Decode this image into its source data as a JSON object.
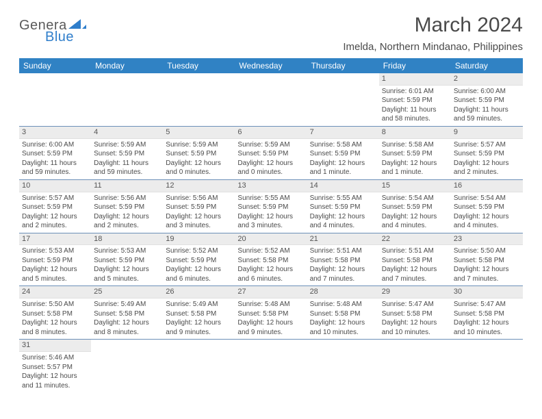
{
  "logo": {
    "word1": "Genera",
    "word2": "Blue"
  },
  "title": "March 2024",
  "subtitle": "Imelda, Northern Mindanao, Philippines",
  "colors": {
    "header_bg": "#3082c4",
    "header_fg": "#ffffff",
    "daynum_bg": "#ececec",
    "border": "#6b8fb8",
    "text": "#4a4a4a"
  },
  "day_names": [
    "Sunday",
    "Monday",
    "Tuesday",
    "Wednesday",
    "Thursday",
    "Friday",
    "Saturday"
  ],
  "weeks": [
    [
      {
        "n": "",
        "sunrise": "",
        "sunset": "",
        "daylight": ""
      },
      {
        "n": "",
        "sunrise": "",
        "sunset": "",
        "daylight": ""
      },
      {
        "n": "",
        "sunrise": "",
        "sunset": "",
        "daylight": ""
      },
      {
        "n": "",
        "sunrise": "",
        "sunset": "",
        "daylight": ""
      },
      {
        "n": "",
        "sunrise": "",
        "sunset": "",
        "daylight": ""
      },
      {
        "n": "1",
        "sunrise": "Sunrise: 6:01 AM",
        "sunset": "Sunset: 5:59 PM",
        "daylight": "Daylight: 11 hours and 58 minutes."
      },
      {
        "n": "2",
        "sunrise": "Sunrise: 6:00 AM",
        "sunset": "Sunset: 5:59 PM",
        "daylight": "Daylight: 11 hours and 59 minutes."
      }
    ],
    [
      {
        "n": "3",
        "sunrise": "Sunrise: 6:00 AM",
        "sunset": "Sunset: 5:59 PM",
        "daylight": "Daylight: 11 hours and 59 minutes."
      },
      {
        "n": "4",
        "sunrise": "Sunrise: 5:59 AM",
        "sunset": "Sunset: 5:59 PM",
        "daylight": "Daylight: 11 hours and 59 minutes."
      },
      {
        "n": "5",
        "sunrise": "Sunrise: 5:59 AM",
        "sunset": "Sunset: 5:59 PM",
        "daylight": "Daylight: 12 hours and 0 minutes."
      },
      {
        "n": "6",
        "sunrise": "Sunrise: 5:59 AM",
        "sunset": "Sunset: 5:59 PM",
        "daylight": "Daylight: 12 hours and 0 minutes."
      },
      {
        "n": "7",
        "sunrise": "Sunrise: 5:58 AM",
        "sunset": "Sunset: 5:59 PM",
        "daylight": "Daylight: 12 hours and 1 minute."
      },
      {
        "n": "8",
        "sunrise": "Sunrise: 5:58 AM",
        "sunset": "Sunset: 5:59 PM",
        "daylight": "Daylight: 12 hours and 1 minute."
      },
      {
        "n": "9",
        "sunrise": "Sunrise: 5:57 AM",
        "sunset": "Sunset: 5:59 PM",
        "daylight": "Daylight: 12 hours and 2 minutes."
      }
    ],
    [
      {
        "n": "10",
        "sunrise": "Sunrise: 5:57 AM",
        "sunset": "Sunset: 5:59 PM",
        "daylight": "Daylight: 12 hours and 2 minutes."
      },
      {
        "n": "11",
        "sunrise": "Sunrise: 5:56 AM",
        "sunset": "Sunset: 5:59 PM",
        "daylight": "Daylight: 12 hours and 2 minutes."
      },
      {
        "n": "12",
        "sunrise": "Sunrise: 5:56 AM",
        "sunset": "Sunset: 5:59 PM",
        "daylight": "Daylight: 12 hours and 3 minutes."
      },
      {
        "n": "13",
        "sunrise": "Sunrise: 5:55 AM",
        "sunset": "Sunset: 5:59 PM",
        "daylight": "Daylight: 12 hours and 3 minutes."
      },
      {
        "n": "14",
        "sunrise": "Sunrise: 5:55 AM",
        "sunset": "Sunset: 5:59 PM",
        "daylight": "Daylight: 12 hours and 4 minutes."
      },
      {
        "n": "15",
        "sunrise": "Sunrise: 5:54 AM",
        "sunset": "Sunset: 5:59 PM",
        "daylight": "Daylight: 12 hours and 4 minutes."
      },
      {
        "n": "16",
        "sunrise": "Sunrise: 5:54 AM",
        "sunset": "Sunset: 5:59 PM",
        "daylight": "Daylight: 12 hours and 4 minutes."
      }
    ],
    [
      {
        "n": "17",
        "sunrise": "Sunrise: 5:53 AM",
        "sunset": "Sunset: 5:59 PM",
        "daylight": "Daylight: 12 hours and 5 minutes."
      },
      {
        "n": "18",
        "sunrise": "Sunrise: 5:53 AM",
        "sunset": "Sunset: 5:59 PM",
        "daylight": "Daylight: 12 hours and 5 minutes."
      },
      {
        "n": "19",
        "sunrise": "Sunrise: 5:52 AM",
        "sunset": "Sunset: 5:59 PM",
        "daylight": "Daylight: 12 hours and 6 minutes."
      },
      {
        "n": "20",
        "sunrise": "Sunrise: 5:52 AM",
        "sunset": "Sunset: 5:58 PM",
        "daylight": "Daylight: 12 hours and 6 minutes."
      },
      {
        "n": "21",
        "sunrise": "Sunrise: 5:51 AM",
        "sunset": "Sunset: 5:58 PM",
        "daylight": "Daylight: 12 hours and 7 minutes."
      },
      {
        "n": "22",
        "sunrise": "Sunrise: 5:51 AM",
        "sunset": "Sunset: 5:58 PM",
        "daylight": "Daylight: 12 hours and 7 minutes."
      },
      {
        "n": "23",
        "sunrise": "Sunrise: 5:50 AM",
        "sunset": "Sunset: 5:58 PM",
        "daylight": "Daylight: 12 hours and 7 minutes."
      }
    ],
    [
      {
        "n": "24",
        "sunrise": "Sunrise: 5:50 AM",
        "sunset": "Sunset: 5:58 PM",
        "daylight": "Daylight: 12 hours and 8 minutes."
      },
      {
        "n": "25",
        "sunrise": "Sunrise: 5:49 AM",
        "sunset": "Sunset: 5:58 PM",
        "daylight": "Daylight: 12 hours and 8 minutes."
      },
      {
        "n": "26",
        "sunrise": "Sunrise: 5:49 AM",
        "sunset": "Sunset: 5:58 PM",
        "daylight": "Daylight: 12 hours and 9 minutes."
      },
      {
        "n": "27",
        "sunrise": "Sunrise: 5:48 AM",
        "sunset": "Sunset: 5:58 PM",
        "daylight": "Daylight: 12 hours and 9 minutes."
      },
      {
        "n": "28",
        "sunrise": "Sunrise: 5:48 AM",
        "sunset": "Sunset: 5:58 PM",
        "daylight": "Daylight: 12 hours and 10 minutes."
      },
      {
        "n": "29",
        "sunrise": "Sunrise: 5:47 AM",
        "sunset": "Sunset: 5:58 PM",
        "daylight": "Daylight: 12 hours and 10 minutes."
      },
      {
        "n": "30",
        "sunrise": "Sunrise: 5:47 AM",
        "sunset": "Sunset: 5:58 PM",
        "daylight": "Daylight: 12 hours and 10 minutes."
      }
    ],
    [
      {
        "n": "31",
        "sunrise": "Sunrise: 5:46 AM",
        "sunset": "Sunset: 5:57 PM",
        "daylight": "Daylight: 12 hours and 11 minutes."
      },
      {
        "n": "",
        "sunrise": "",
        "sunset": "",
        "daylight": ""
      },
      {
        "n": "",
        "sunrise": "",
        "sunset": "",
        "daylight": ""
      },
      {
        "n": "",
        "sunrise": "",
        "sunset": "",
        "daylight": ""
      },
      {
        "n": "",
        "sunrise": "",
        "sunset": "",
        "daylight": ""
      },
      {
        "n": "",
        "sunrise": "",
        "sunset": "",
        "daylight": ""
      },
      {
        "n": "",
        "sunrise": "",
        "sunset": "",
        "daylight": ""
      }
    ]
  ]
}
